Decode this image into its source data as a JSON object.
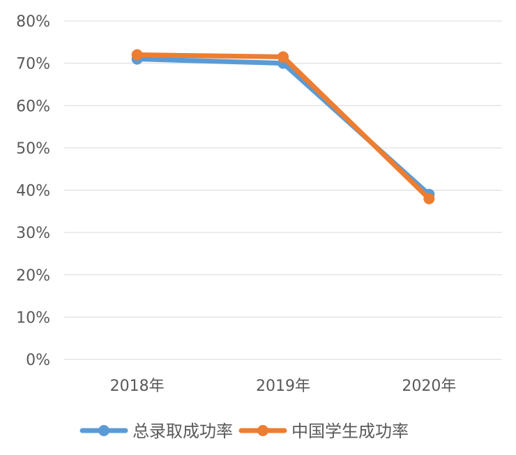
{
  "chart_data": {
    "type": "line",
    "categories": [
      "2018年",
      "2019年",
      "2020年"
    ],
    "series": [
      {
        "name": "总录取成功率",
        "values": [
          71,
          70,
          39
        ],
        "color": "#5b9bd5"
      },
      {
        "name": "中国学生成功率",
        "values": [
          72,
          71.5,
          38
        ],
        "color": "#ed7d31"
      }
    ],
    "ylim": [
      0,
      80
    ],
    "yticks": [
      0,
      10,
      20,
      30,
      40,
      50,
      60,
      70,
      80
    ],
    "ytick_format": "percent",
    "grid": true,
    "legend_position": "bottom",
    "title": "",
    "xlabel": "",
    "ylabel": ""
  }
}
